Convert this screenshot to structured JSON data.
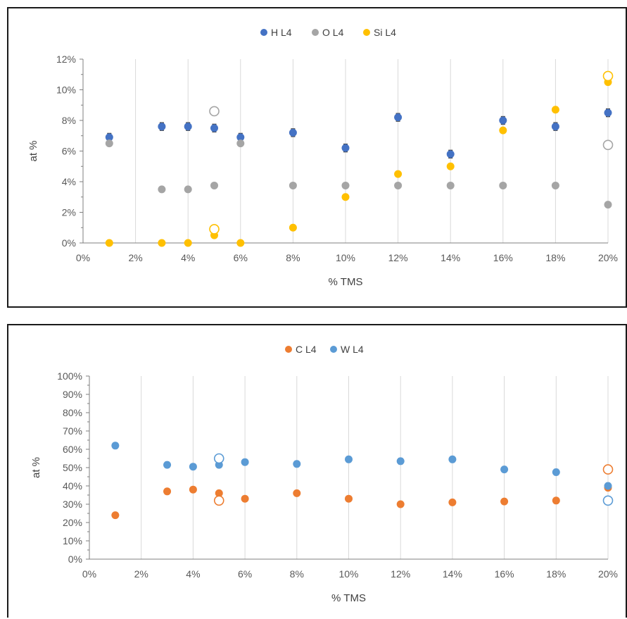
{
  "chart_data": [
    {
      "type": "scatter",
      "xlabel": "% TMS",
      "ylabel": "at %",
      "x_ticks": [
        "0%",
        "2%",
        "4%",
        "6%",
        "8%",
        "10%",
        "12%",
        "14%",
        "16%",
        "18%",
        "20%"
      ],
      "y_ticks": [
        "0%",
        "2%",
        "4%",
        "6%",
        "8%",
        "10%",
        "12%"
      ],
      "xlim": [
        0,
        20
      ],
      "ylim": [
        0,
        12
      ],
      "grid": "vertical",
      "legend_position": "top-center",
      "series": [
        {
          "name": "H  L4",
          "color": "#4472C4",
          "points": [
            [
              1,
              6.9
            ],
            [
              3,
              7.6
            ],
            [
              4,
              7.6
            ],
            [
              5,
              7.5
            ],
            [
              6,
              6.9
            ],
            [
              8,
              7.2
            ],
            [
              10,
              6.2
            ],
            [
              12,
              8.2
            ],
            [
              14,
              5.8
            ],
            [
              16,
              8.0
            ],
            [
              18,
              7.6
            ],
            [
              20,
              8.5
            ]
          ],
          "error": 0.25
        },
        {
          "name": "O  L4",
          "color": "#A5A5A5",
          "points": [
            [
              1,
              6.5
            ],
            [
              3,
              3.5
            ],
            [
              4,
              3.5
            ],
            [
              5,
              3.75
            ],
            [
              6,
              6.5
            ],
            [
              8,
              3.75
            ],
            [
              10,
              3.75
            ],
            [
              12,
              3.75
            ],
            [
              14,
              3.75
            ],
            [
              16,
              3.75
            ],
            [
              18,
              3.75
            ],
            [
              20,
              2.5
            ]
          ],
          "open_points": [
            [
              5,
              8.6
            ],
            [
              20,
              6.4
            ]
          ]
        },
        {
          "name": "Si  L4",
          "color": "#FFC000",
          "points": [
            [
              1,
              0
            ],
            [
              3,
              0
            ],
            [
              4,
              0
            ],
            [
              5,
              0.5
            ],
            [
              6,
              0
            ],
            [
              8,
              1.0
            ],
            [
              10,
              3.0
            ],
            [
              12,
              4.5
            ],
            [
              14,
              5.0
            ],
            [
              16,
              7.35
            ],
            [
              18,
              8.7
            ],
            [
              20,
              10.5
            ]
          ],
          "open_points": [
            [
              5,
              0.9
            ],
            [
              20,
              10.9
            ]
          ]
        }
      ]
    },
    {
      "type": "scatter",
      "xlabel": "% TMS",
      "ylabel": "at %",
      "x_ticks": [
        "0%",
        "2%",
        "4%",
        "6%",
        "8%",
        "10%",
        "12%",
        "14%",
        "16%",
        "18%",
        "20%"
      ],
      "y_ticks": [
        "0%",
        "10%",
        "20%",
        "30%",
        "40%",
        "50%",
        "60%",
        "70%",
        "80%",
        "90%",
        "100%"
      ],
      "xlim": [
        0,
        20
      ],
      "ylim": [
        0,
        100
      ],
      "grid": "vertical",
      "legend_position": "top-center",
      "series": [
        {
          "name": "C L4",
          "color": "#ED7D31",
          "points": [
            [
              1,
              24
            ],
            [
              3,
              37
            ],
            [
              4,
              38
            ],
            [
              5,
              36
            ],
            [
              6,
              33
            ],
            [
              8,
              36
            ],
            [
              10,
              33
            ],
            [
              12,
              30
            ],
            [
              14,
              31
            ],
            [
              16,
              31.5
            ],
            [
              18,
              32
            ],
            [
              20,
              39
            ]
          ],
          "open_points": [
            [
              5,
              32
            ],
            [
              20,
              49
            ]
          ]
        },
        {
          "name": "W  L4",
          "color": "#5B9BD5",
          "points": [
            [
              1,
              62
            ],
            [
              3,
              51.5
            ],
            [
              4,
              50.5
            ],
            [
              5,
              51.5
            ],
            [
              6,
              53
            ],
            [
              8,
              52
            ],
            [
              10,
              54.5
            ],
            [
              12,
              53.5
            ],
            [
              14,
              54.5
            ],
            [
              16,
              49
            ],
            [
              18,
              47.5
            ],
            [
              20,
              40
            ]
          ],
          "open_points": [
            [
              5,
              55
            ],
            [
              20,
              32
            ]
          ],
          "error": 1.5
        }
      ]
    }
  ]
}
